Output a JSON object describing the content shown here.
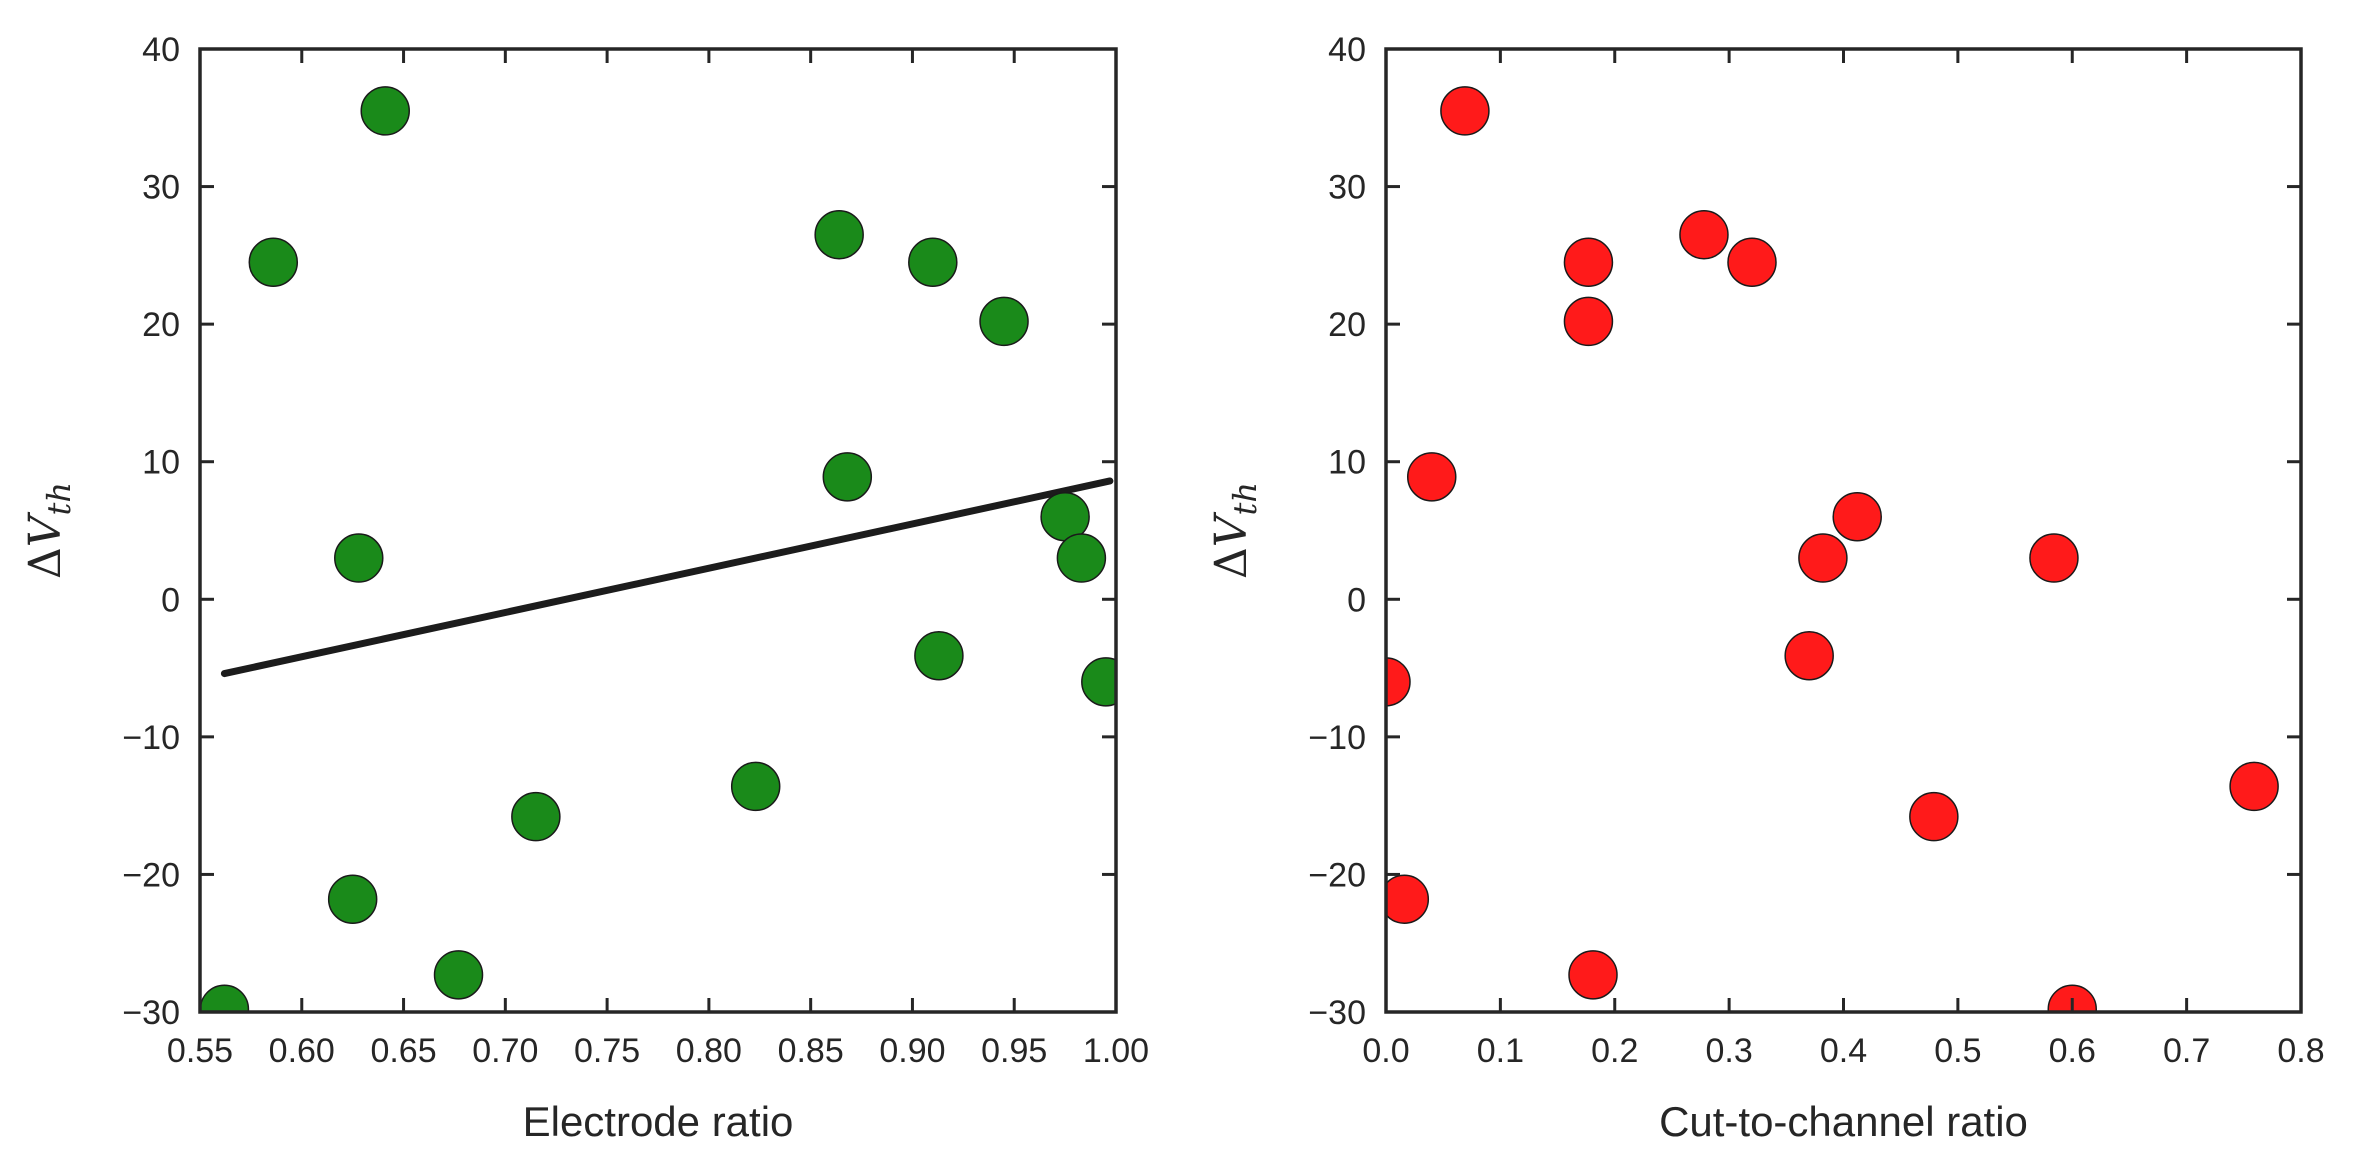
{
  "chart_data": [
    {
      "type": "scatter",
      "title": "",
      "xlabel": "Electrode ratio",
      "ylabel": "ΔVth",
      "xlim": [
        0.55,
        1.0
      ],
      "ylim": [
        -30,
        40
      ],
      "xticks": [
        "0.55",
        "0.60",
        "0.65",
        "0.70",
        "0.75",
        "0.80",
        "0.85",
        "0.90",
        "0.95",
        "1.00"
      ],
      "xtick_values": [
        0.55,
        0.6,
        0.65,
        0.7,
        0.75,
        0.8,
        0.85,
        0.9,
        0.95,
        1.0
      ],
      "yticks": [
        "−30",
        "−20",
        "−10",
        "0",
        "10",
        "20",
        "30",
        "40"
      ],
      "ytick_values": [
        -30,
        -20,
        -10,
        0,
        10,
        20,
        30,
        40
      ],
      "grid": false,
      "marker_color": "#1a8a1a",
      "points": [
        {
          "x": 0.562,
          "y": -29.8
        },
        {
          "x": 0.586,
          "y": 24.5
        },
        {
          "x": 0.625,
          "y": -21.8
        },
        {
          "x": 0.628,
          "y": 3.0
        },
        {
          "x": 0.641,
          "y": 35.5
        },
        {
          "x": 0.677,
          "y": -27.3
        },
        {
          "x": 0.715,
          "y": -15.8
        },
        {
          "x": 0.823,
          "y": -13.6
        },
        {
          "x": 0.864,
          "y": 26.5
        },
        {
          "x": 0.868,
          "y": 8.9
        },
        {
          "x": 0.91,
          "y": 24.5
        },
        {
          "x": 0.913,
          "y": -4.1
        },
        {
          "x": 0.945,
          "y": 20.2
        },
        {
          "x": 0.975,
          "y": 6.0
        },
        {
          "x": 0.983,
          "y": 3.0
        },
        {
          "x": 0.995,
          "y": -6.0
        }
      ],
      "trendline": {
        "color": "#1c1c1c",
        "points": [
          {
            "x": 0.562,
            "y": -5.4
          },
          {
            "x": 0.997,
            "y": 8.6
          }
        ]
      }
    },
    {
      "type": "scatter",
      "title": "",
      "xlabel": "Cut-to-channel ratio",
      "ylabel": "ΔVth",
      "xlim": [
        0.0,
        0.8
      ],
      "ylim": [
        -30,
        40
      ],
      "xticks": [
        "0.0",
        "0.1",
        "0.2",
        "0.3",
        "0.4",
        "0.5",
        "0.6",
        "0.7",
        "0.8"
      ],
      "xtick_values": [
        0.0,
        0.1,
        0.2,
        0.3,
        0.4,
        0.5,
        0.6,
        0.7,
        0.8
      ],
      "yticks": [
        "−30",
        "−20",
        "−10",
        "0",
        "10",
        "20",
        "30",
        "40"
      ],
      "ytick_values": [
        -30,
        -20,
        -10,
        0,
        10,
        20,
        30,
        40
      ],
      "grid": false,
      "marker_color": "#ff1a1a",
      "points": [
        {
          "x": 0.0,
          "y": -6.0
        },
        {
          "x": 0.016,
          "y": -21.8
        },
        {
          "x": 0.04,
          "y": 8.9
        },
        {
          "x": 0.069,
          "y": 35.5
        },
        {
          "x": 0.177,
          "y": 24.5
        },
        {
          "x": 0.177,
          "y": 20.2
        },
        {
          "x": 0.181,
          "y": -27.3
        },
        {
          "x": 0.278,
          "y": 26.5
        },
        {
          "x": 0.32,
          "y": 24.5
        },
        {
          "x": 0.37,
          "y": -4.1
        },
        {
          "x": 0.382,
          "y": 3.0
        },
        {
          "x": 0.412,
          "y": 6.0
        },
        {
          "x": 0.479,
          "y": -15.8
        },
        {
          "x": 0.584,
          "y": 3.0
        },
        {
          "x": 0.6,
          "y": -29.8
        },
        {
          "x": 0.759,
          "y": -13.6
        }
      ]
    }
  ]
}
